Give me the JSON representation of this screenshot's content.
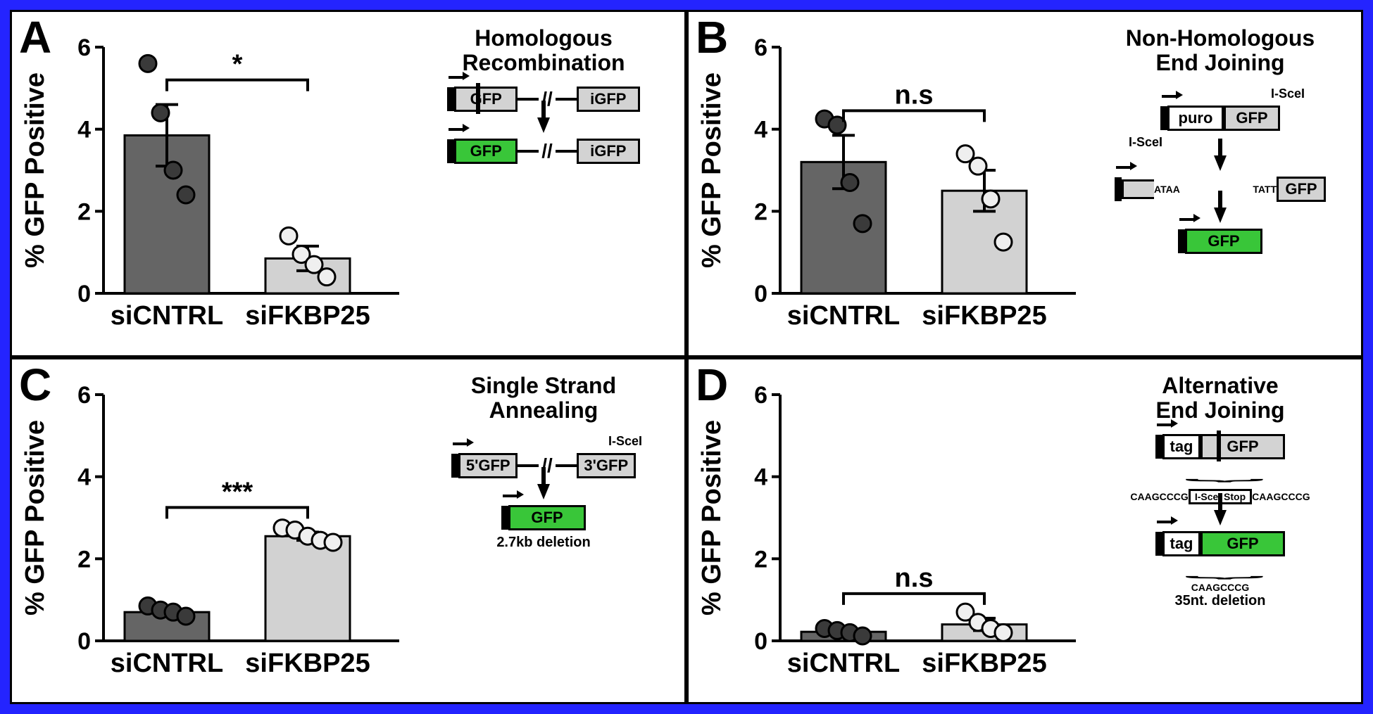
{
  "frame_border_color": "#2424ff",
  "panels": {
    "A": {
      "label": "A",
      "title": "Homologous Recombination",
      "y_axis_label": "% GFP Positive",
      "y_min": 0,
      "y_max": 6,
      "y_ticks": [
        0,
        2,
        4,
        6
      ],
      "categories": [
        "siCNTRL",
        "siFKBP25"
      ],
      "bars": [
        {
          "value": 3.85,
          "err": 0.75,
          "color": "#656565",
          "points": [
            5.6,
            4.4,
            3.0,
            2.4
          ]
        },
        {
          "value": 0.85,
          "err": 0.3,
          "color": "#d2d2d2",
          "points": [
            1.4,
            0.95,
            0.7,
            0.4
          ]
        }
      ],
      "significance": "*",
      "schematic": {
        "before": [
          [
            "prom"
          ],
          [
            "seg",
            "grey",
            "GFP_cut"
          ],
          [
            "thinline"
          ],
          [
            "slashes"
          ],
          [
            "thinline"
          ],
          [
            "seg",
            "grey",
            "iGFP"
          ]
        ],
        "after": [
          [
            "prom"
          ],
          [
            "seg",
            "green",
            "GFP"
          ],
          [
            "thinline"
          ],
          [
            "slashes"
          ],
          [
            "thinline"
          ],
          [
            "seg",
            "grey",
            "iGFP"
          ]
        ]
      }
    },
    "B": {
      "label": "B",
      "title": "Non-Homologous End Joining",
      "y_axis_label": "% GFP Positive",
      "y_min": 0,
      "y_max": 6,
      "y_ticks": [
        0,
        2,
        4,
        6
      ],
      "categories": [
        "siCNTRL",
        "siFKBP25"
      ],
      "bars": [
        {
          "value": 3.2,
          "err": 0.65,
          "color": "#656565",
          "points": [
            4.25,
            4.1,
            2.7,
            1.7
          ]
        },
        {
          "value": 2.5,
          "err": 0.5,
          "color": "#d2d2d2",
          "points": [
            3.4,
            3.1,
            2.3,
            1.25
          ]
        }
      ],
      "significance": "n.s",
      "schematic": {
        "row1_label_right": "I-SceI",
        "row1": [
          [
            "prom"
          ],
          [
            "seg",
            "white",
            "puro"
          ],
          [
            "seg",
            "grey",
            "GFP"
          ]
        ],
        "row2_label_left": "I-SceI",
        "row2_left": [
          [
            "prom"
          ],
          [
            "tiny",
            "ATAA"
          ]
        ],
        "row2_right": [
          [
            "tiny",
            "TATT"
          ],
          [
            "seg",
            "grey",
            "GFP"
          ]
        ],
        "after": [
          [
            "prom"
          ],
          [
            "seg",
            "green",
            "GFP"
          ]
        ]
      }
    },
    "C": {
      "label": "C",
      "title": "Single Strand Annealing",
      "y_axis_label": "% GFP Positive",
      "y_min": 0,
      "y_max": 6,
      "y_ticks": [
        0,
        2,
        4,
        6
      ],
      "categories": [
        "siCNTRL",
        "siFKBP25"
      ],
      "bars": [
        {
          "value": 0.7,
          "err": 0.08,
          "color": "#656565",
          "points": [
            0.85,
            0.75,
            0.7,
            0.6
          ]
        },
        {
          "value": 2.55,
          "err": 0.1,
          "color": "#d2d2d2",
          "points": [
            2.75,
            2.7,
            2.55,
            2.45,
            2.4
          ]
        }
      ],
      "significance": "***",
      "schematic": {
        "row1_label_right": "I-SceI",
        "before": [
          [
            "prom"
          ],
          [
            "seg",
            "grey",
            "5'GFP"
          ],
          [
            "thinline"
          ],
          [
            "slashes"
          ],
          [
            "thinline"
          ],
          [
            "seg",
            "grey",
            "3'GFP"
          ]
        ],
        "after": [
          [
            "prom"
          ],
          [
            "seg",
            "green",
            "GFP"
          ]
        ],
        "note": "2.7kb deletion"
      }
    },
    "D": {
      "label": "D",
      "title": "Alternative End Joining",
      "y_axis_label": "% GFP Positive",
      "y_min": 0,
      "y_max": 6,
      "y_ticks": [
        0,
        2,
        4,
        6
      ],
      "categories": [
        "siCNTRL",
        "siFKBP25"
      ],
      "bars": [
        {
          "value": 0.22,
          "err": 0.08,
          "color": "#656565",
          "points": [
            0.3,
            0.25,
            0.2,
            0.12
          ]
        },
        {
          "value": 0.4,
          "err": 0.15,
          "color": "#d2d2d2",
          "points": [
            0.7,
            0.45,
            0.3,
            0.2
          ]
        }
      ],
      "significance": "n.s",
      "schematic": {
        "before": [
          [
            "prom"
          ],
          [
            "seg",
            "white",
            "tag"
          ],
          [
            "seg",
            "grey",
            "GFP_cut"
          ]
        ],
        "before_seq_left": "CAAGCCCG",
        "before_seq_mid": "I-SceI Stop",
        "before_seq_right": "CAAGCCCG",
        "after": [
          [
            "prom"
          ],
          [
            "seg",
            "white",
            "tag"
          ],
          [
            "seg",
            "green",
            "GFP"
          ]
        ],
        "after_seq": "CAAGCCCG",
        "note": "35nt. deletion"
      }
    }
  }
}
